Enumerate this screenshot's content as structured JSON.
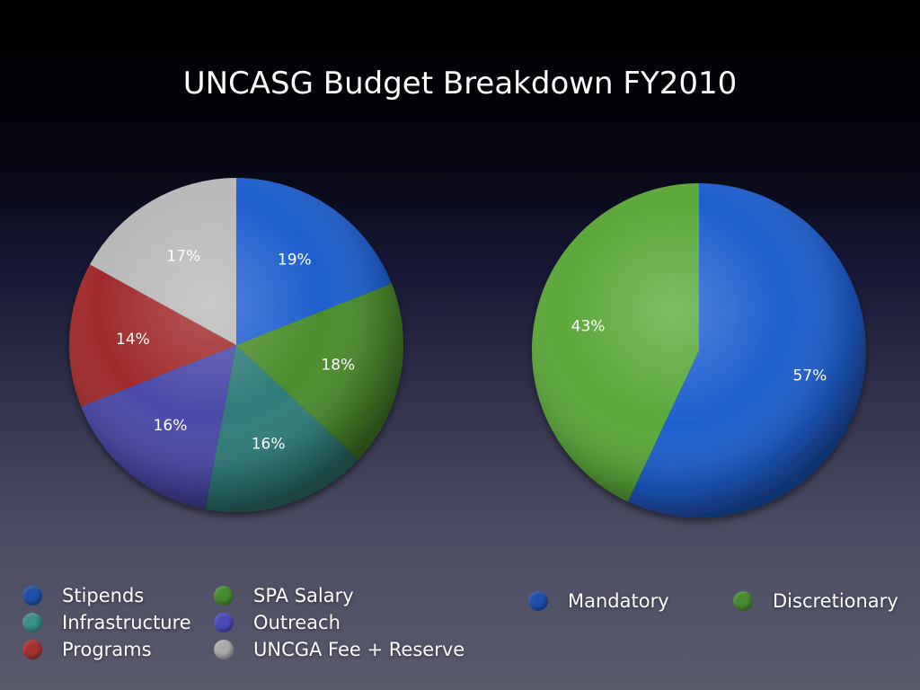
{
  "title": "UNCASG Budget Breakdown FY2010",
  "chart_data": [
    {
      "type": "pie",
      "title": "",
      "slices": [
        {
          "label": "Stipends",
          "value": 19,
          "display": "19%",
          "color": "#1f5fcf"
        },
        {
          "label": "SPA Salary",
          "value": 18,
          "display": "18%",
          "color": "#4b8c2c"
        },
        {
          "label": "Infrastructure",
          "value": 16,
          "display": "16%",
          "color": "#2f7c7a"
        },
        {
          "label": "Outreach",
          "value": 16,
          "display": "16%",
          "color": "#4b4aa8"
        },
        {
          "label": "Programs",
          "value": 14,
          "display": "14%",
          "color": "#a12a2a"
        },
        {
          "label": "UNCGA Fee + Reserve",
          "value": 17,
          "display": "17%",
          "color": "#b9b9b9"
        }
      ],
      "legend": {
        "placement": "bottom-left",
        "items": [
          {
            "label": "Stipends",
            "color": "#1d4fa8"
          },
          {
            "label": "SPA Salary",
            "color": "#468b2e"
          },
          {
            "label": "Infrastructure",
            "color": "#3a8f8c"
          },
          {
            "label": "Outreach",
            "color": "#4a4ab8"
          },
          {
            "label": "Programs",
            "color": "#a83232"
          },
          {
            "label": "UNCGA Fee + Reserve",
            "color": "#a9a9a9"
          }
        ]
      }
    },
    {
      "type": "pie",
      "title": "",
      "slices": [
        {
          "label": "Mandatory",
          "value": 57,
          "display": "57%",
          "color": "#1f5fcf"
        },
        {
          "label": "Discretionary",
          "value": 43,
          "display": "43%",
          "color": "#5aa83a"
        }
      ],
      "legend": {
        "placement": "bottom-right",
        "items": [
          {
            "label": "Mandatory",
            "color": "#1d4fa8"
          },
          {
            "label": "Discretionary",
            "color": "#468b2e"
          }
        ]
      }
    }
  ]
}
